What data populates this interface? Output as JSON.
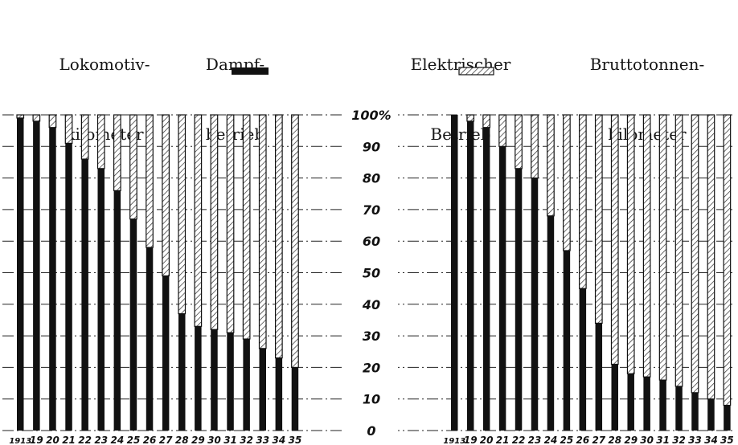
{
  "legend": {
    "left_measure_line1": "Lokomotiv-",
    "left_measure_line2": "kilometer",
    "steam_line1": "Dampf-",
    "steam_line2": "betrieb",
    "electric_line1": "Elektrischer",
    "electric_line2": "Betrieb",
    "right_measure_line1": "Bruttotonnen-",
    "right_measure_line2": "kilometer"
  },
  "colors": {
    "steam": "#111111",
    "electric_hatch": "#2a2a2a",
    "grid": "#222222"
  },
  "chart_data": [
    {
      "type": "bar",
      "stacked": true,
      "title": "Lokomotiv-kilometer",
      "categories": [
        "1913",
        "19",
        "20",
        "21",
        "22",
        "23",
        "24",
        "25",
        "26",
        "27",
        "28",
        "29",
        "30",
        "31",
        "32",
        "33",
        "34",
        "35"
      ],
      "series": [
        {
          "name": "Dampfbetrieb",
          "pattern": "solid",
          "values": [
            99,
            98,
            96,
            91,
            86,
            83,
            76,
            67,
            58,
            49,
            37,
            33,
            32,
            31,
            29,
            26,
            23,
            20
          ]
        },
        {
          "name": "Elektrischer Betrieb",
          "pattern": "hatched",
          "values": [
            1,
            2,
            4,
            9,
            14,
            17,
            24,
            33,
            42,
            51,
            63,
            67,
            68,
            69,
            71,
            74,
            77,
            80
          ]
        }
      ],
      "ylim": [
        0,
        100
      ],
      "grid": true
    },
    {
      "type": "bar",
      "stacked": true,
      "title": "Bruttotonnen-kilometer",
      "categories": [
        "1913",
        "19",
        "20",
        "21",
        "22",
        "23",
        "24",
        "25",
        "26",
        "27",
        "28",
        "29",
        "30",
        "31",
        "32",
        "33",
        "34",
        "35"
      ],
      "series": [
        {
          "name": "Dampfbetrieb",
          "pattern": "solid",
          "values": [
            100,
            98,
            96,
            90,
            83,
            80,
            68,
            57,
            45,
            34,
            21,
            18,
            17,
            16,
            14,
            12,
            10,
            8
          ]
        },
        {
          "name": "Elektrischer Betrieb",
          "pattern": "hatched",
          "values": [
            0,
            2,
            4,
            10,
            17,
            20,
            32,
            43,
            55,
            66,
            79,
            82,
            83,
            84,
            86,
            88,
            90,
            92
          ]
        }
      ],
      "ylim": [
        0,
        100
      ],
      "grid": true
    }
  ],
  "y_axis": {
    "tick_values": [
      0,
      10,
      20,
      30,
      40,
      50,
      60,
      70,
      80,
      90,
      100
    ],
    "tick_labels": [
      "0",
      "10",
      "20",
      "30",
      "40",
      "50",
      "60",
      "70",
      "80",
      "90",
      "100%"
    ]
  }
}
